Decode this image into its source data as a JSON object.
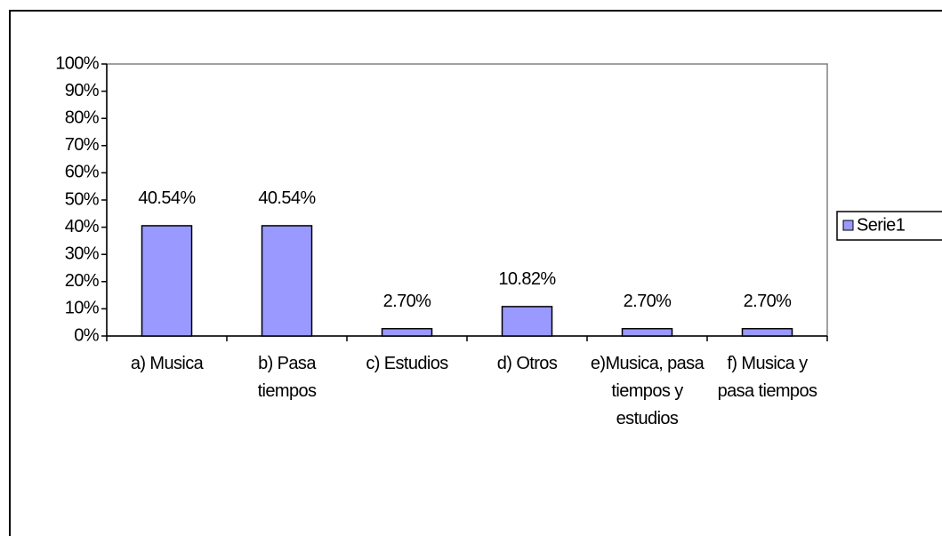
{
  "chart_data": {
    "type": "bar",
    "categories": [
      "a) Musica",
      "b) Pasa tiempos",
      "c) Estudios",
      "d) Otros",
      "e)Musica, pasa tiempos y estudios",
      "f) Musica y pasa tiempos"
    ],
    "series": [
      {
        "name": "Serie1",
        "color": "#9999ff",
        "values": [
          40.54,
          40.54,
          2.7,
          10.82,
          2.7,
          2.7
        ],
        "value_labels": [
          "40.54%",
          "40.54%",
          "2.70%",
          "10.82%",
          "2.70%",
          "2.70%"
        ]
      }
    ],
    "ylim": [
      0,
      100
    ],
    "yticks": [
      {
        "value": 0,
        "label": "0%"
      },
      {
        "value": 10,
        "label": "10%"
      },
      {
        "value": 20,
        "label": "20%"
      },
      {
        "value": 30,
        "label": "30%"
      },
      {
        "value": 40,
        "label": "40%"
      },
      {
        "value": 50,
        "label": "50%"
      },
      {
        "value": 60,
        "label": "60%"
      },
      {
        "value": 70,
        "label": "70%"
      },
      {
        "value": 80,
        "label": "80%"
      },
      {
        "value": 90,
        "label": "90%"
      },
      {
        "value": 100,
        "label": "100%"
      }
    ],
    "legend": "right"
  }
}
